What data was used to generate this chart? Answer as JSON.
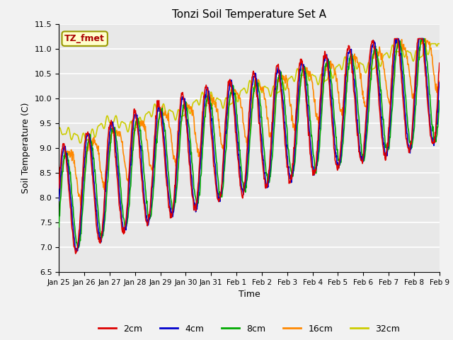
{
  "title": "Tonzi Soil Temperature Set A",
  "xlabel": "Time",
  "ylabel": "Soil Temperature (C)",
  "ylim": [
    6.5,
    11.5
  ],
  "annotation": "TZ_fmet",
  "colors": {
    "2cm": "#dd0000",
    "4cm": "#0000cc",
    "8cm": "#00aa00",
    "16cm": "#ff8800",
    "32cm": "#cccc00"
  },
  "tick_dates": [
    "Jan 25",
    "Jan 26",
    "Jan 27",
    "Jan 28",
    "Jan 29",
    "Jan 30",
    "Jan 31",
    "Feb 1",
    "Feb 2",
    "Feb 3",
    "Feb 4",
    "Feb 5",
    "Feb 6",
    "Feb 7",
    "Feb 8",
    "Feb 9"
  ],
  "n_points": 960,
  "fig_bg": "#f2f2f2",
  "axes_bg": "#e8e8e8"
}
